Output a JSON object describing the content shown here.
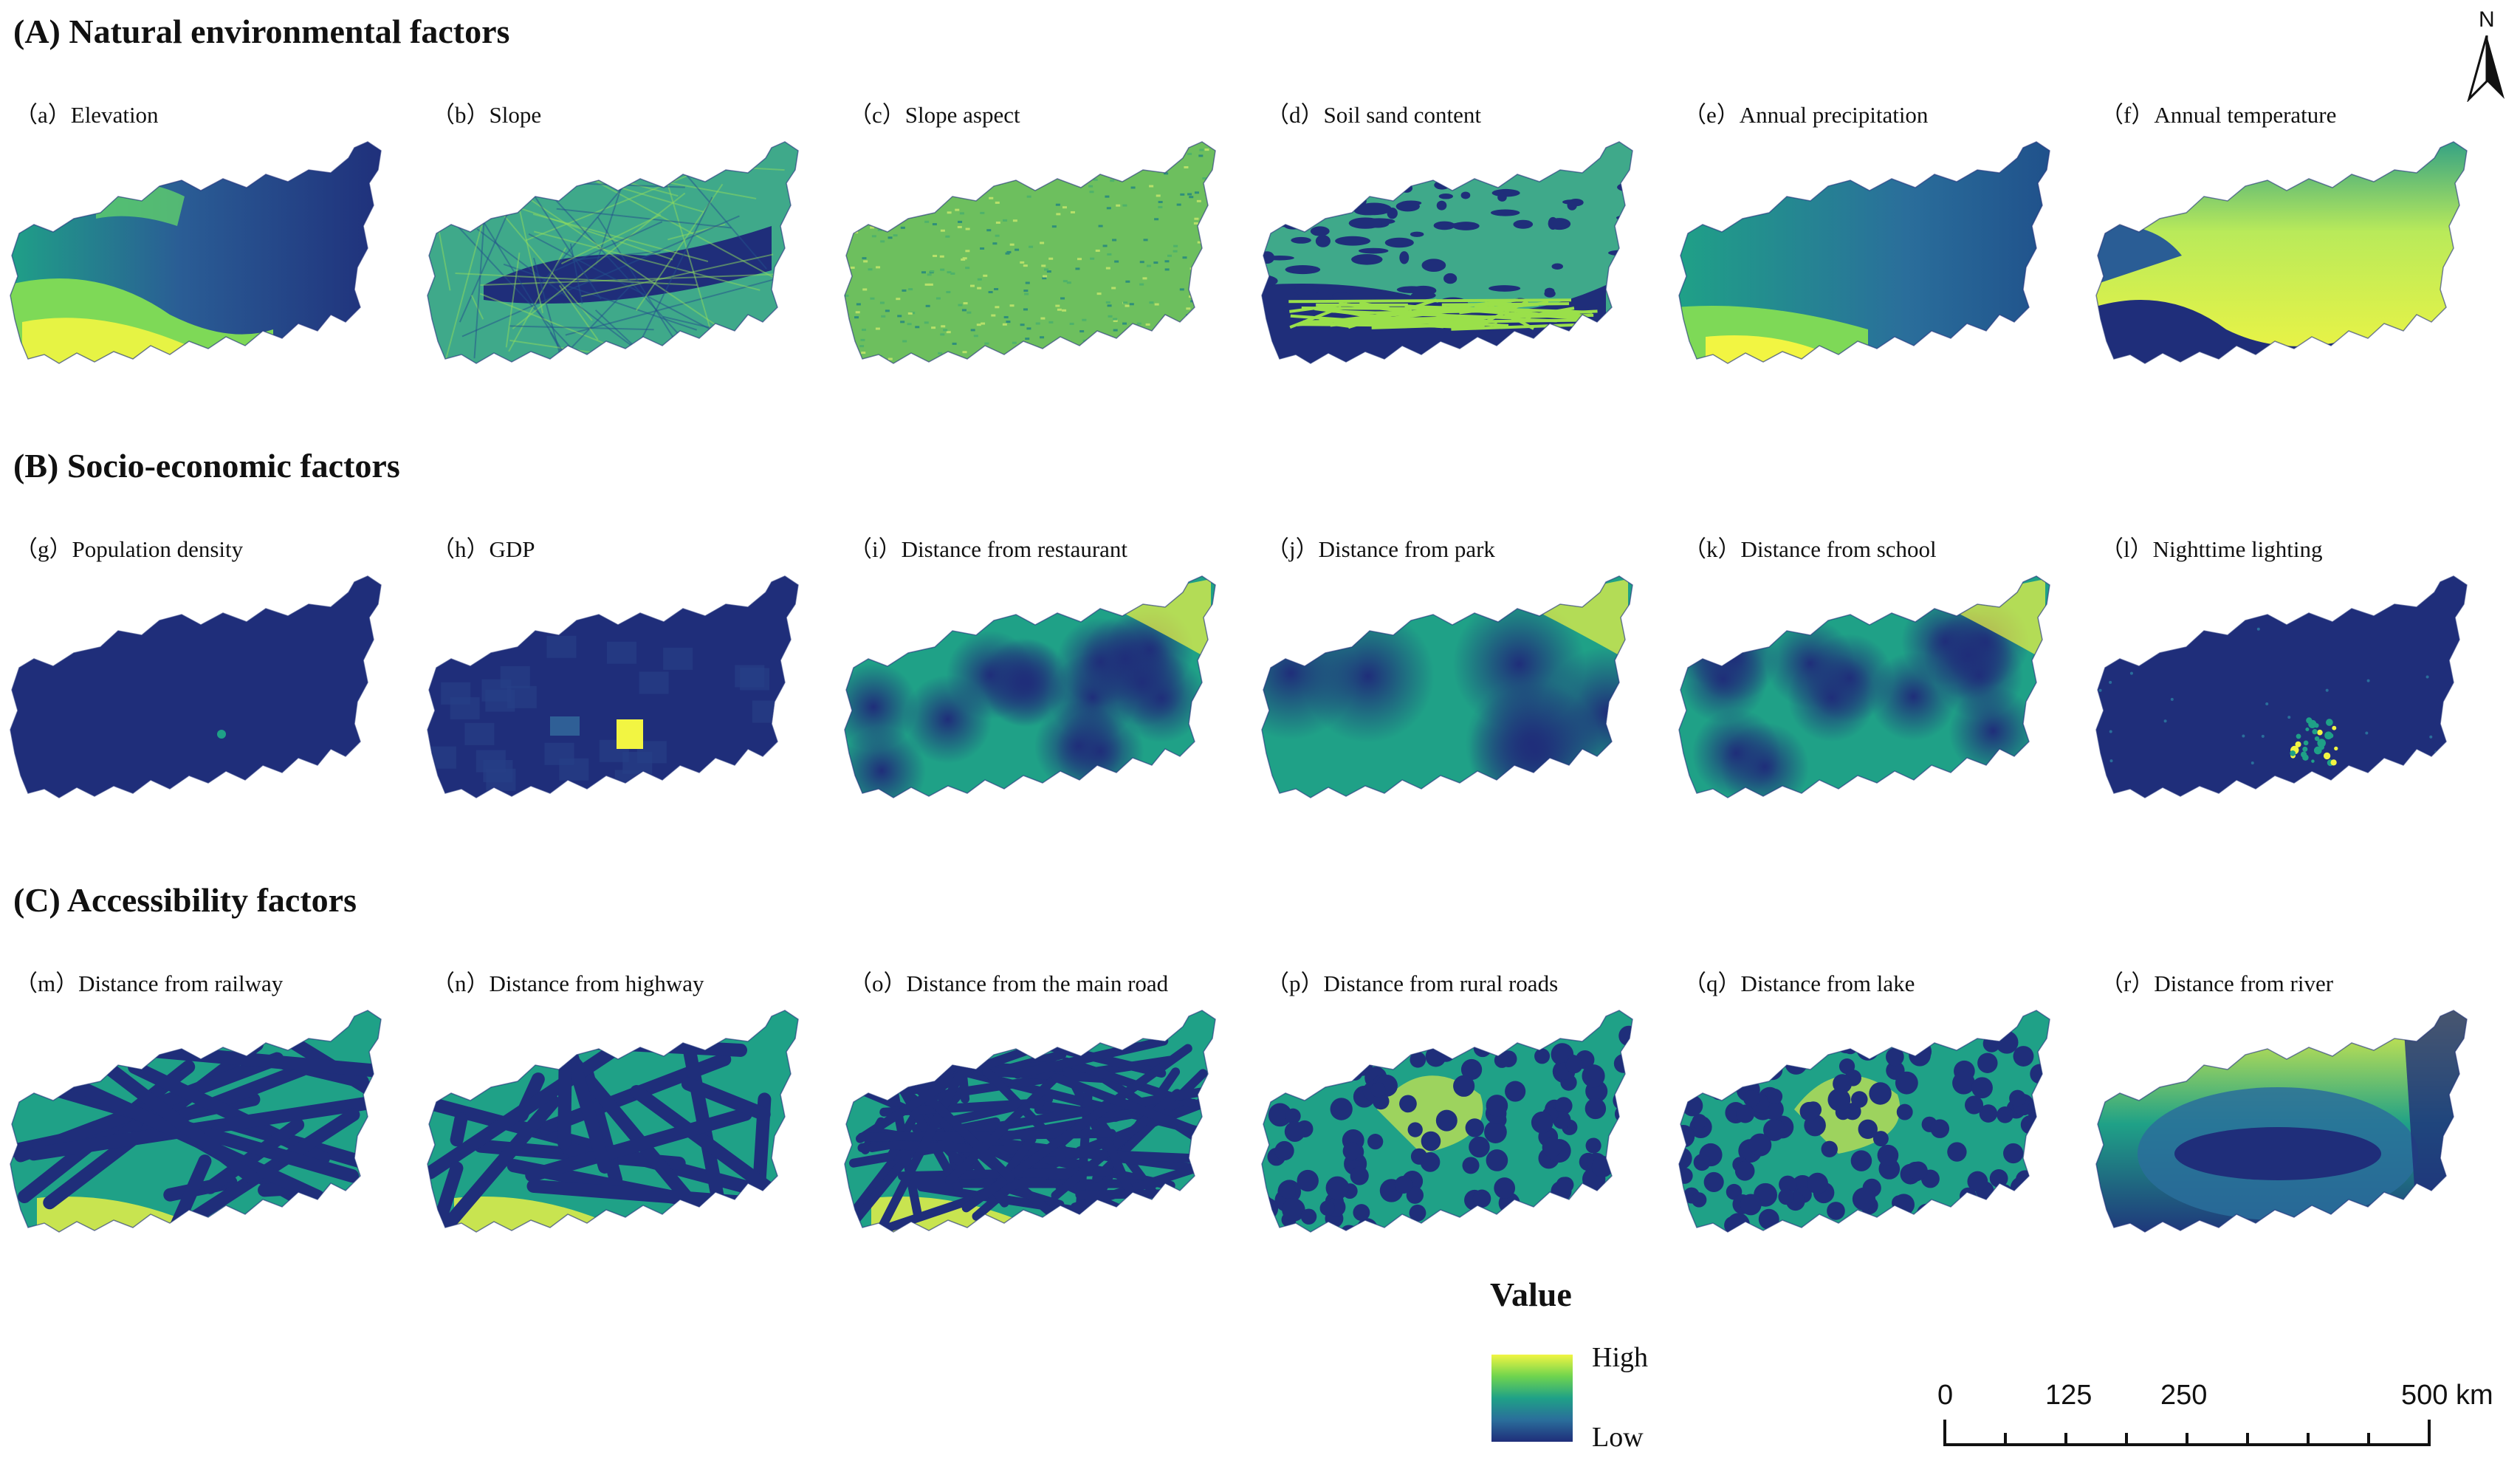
{
  "sections": [
    {
      "title": "(A) Natural environmental factors"
    },
    {
      "title": "(B) Socio-economic factors"
    },
    {
      "title": "(C) Accessibility factors"
    }
  ],
  "panels": [
    {
      "label": "（a）Elevation",
      "style": "elevation"
    },
    {
      "label": "（b）Slope",
      "style": "slope"
    },
    {
      "label": "（c）Slope aspect",
      "style": "aspect"
    },
    {
      "label": "（d）Soil sand content",
      "style": "soil"
    },
    {
      "label": "（e）Annual precipitation",
      "style": "precip"
    },
    {
      "label": "（f）Annual temperature",
      "style": "temp"
    },
    {
      "label": "（g）Population density",
      "style": "dark"
    },
    {
      "label": "（h）GDP",
      "style": "gdp"
    },
    {
      "label": "（i）Distance from restaurant",
      "style": "points"
    },
    {
      "label": "（j）Distance from park",
      "style": "park"
    },
    {
      "label": "（k）Distance from school",
      "style": "points"
    },
    {
      "label": "（l）Nighttime lighting",
      "style": "light"
    },
    {
      "label": "（m）Distance from railway",
      "style": "lines"
    },
    {
      "label": "（n）Distance from highway",
      "style": "lines"
    },
    {
      "label": "（o）Distance from the main road",
      "style": "dense"
    },
    {
      "label": "（p）Distance from rural roads",
      "style": "dots"
    },
    {
      "label": "（q）Distance from lake",
      "style": "dots"
    },
    {
      "label": "（r）Distance from river",
      "style": "river"
    }
  ],
  "legend": {
    "title": "Value",
    "high": "High",
    "low": "Low"
  },
  "scalebar": {
    "ticks": [
      "0",
      "125",
      "250",
      "500 km"
    ]
  },
  "north_arrow": {
    "label": "N"
  },
  "colors": {
    "low": "#1f2e7a",
    "mid": "#1fa187",
    "high": "#f2f542"
  }
}
